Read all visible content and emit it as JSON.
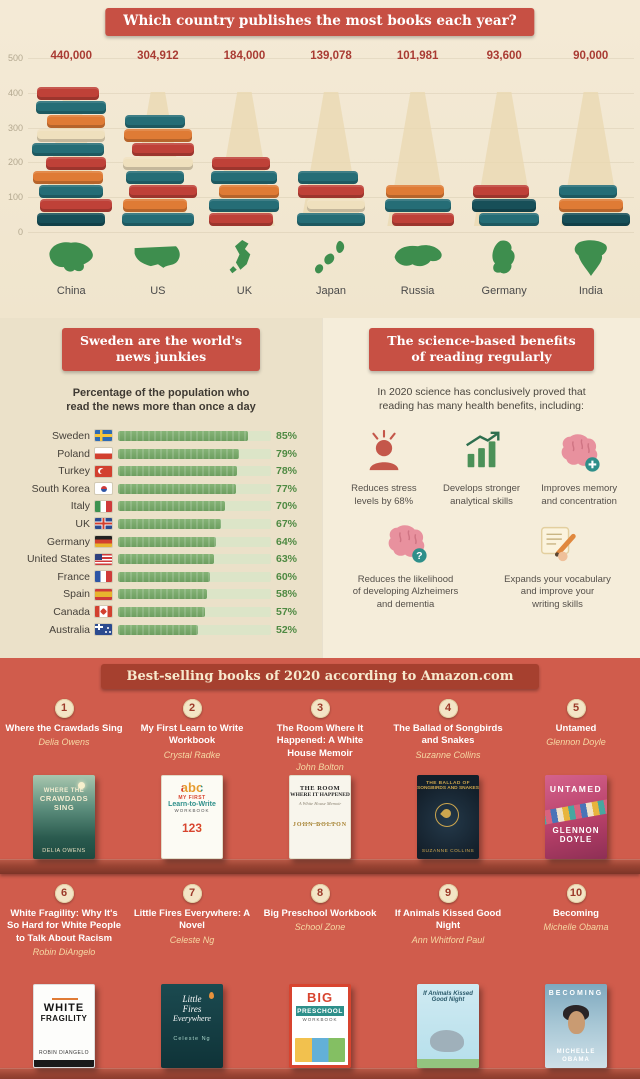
{
  "colors": {
    "accent_red": "#c75044",
    "banner_dark_red": "#a6402f",
    "bottom_background": "#d05c4c",
    "map_green": "#3e8e4e",
    "bar_green": "#6d9e60",
    "cream_background": "#f2e8d2"
  },
  "chart_data": [
    {
      "type": "bar",
      "title": "Which country publishes the most books each year?",
      "categories": [
        "China",
        "US",
        "UK",
        "Japan",
        "Russia",
        "Germany",
        "India"
      ],
      "values": [
        440000,
        304912,
        184000,
        139078,
        101981,
        93600,
        90000
      ],
      "value_labels": [
        "440,000",
        "304,912",
        "184,000",
        "139,078",
        "101,981",
        "93,600",
        "90,000"
      ],
      "y_tick_labels": [
        "500",
        "400",
        "300",
        "200",
        "100",
        "0"
      ],
      "ylim": [
        0,
        500
      ],
      "xlabel": "",
      "ylabel": "",
      "legend_position": "none"
    },
    {
      "type": "bar",
      "orientation": "horizontal",
      "title": "Sweden are the world's news junkies",
      "subtitle": "Percentage of the population who read the news more than once a day",
      "categories": [
        "Sweden",
        "Poland",
        "Turkey",
        "South Korea",
        "Italy",
        "UK",
        "Germany",
        "United States",
        "France",
        "Spain",
        "Canada",
        "Australia"
      ],
      "values": [
        85,
        79,
        78,
        77,
        70,
        67,
        64,
        63,
        60,
        58,
        57,
        52
      ],
      "value_labels": [
        "85%",
        "79%",
        "78%",
        "77%",
        "70%",
        "67%",
        "64%",
        "63%",
        "60%",
        "58%",
        "57%",
        "52%"
      ],
      "xlim": [
        0,
        100
      ],
      "legend_position": "none"
    }
  ],
  "sections": {
    "news": {
      "title_display": "Sweden are the world's\nnews junkies",
      "subtitle_display": "Percentage of the population who\nread the news more than once a day"
    },
    "benefits": {
      "title_display": "The science-based benefits\nof reading regularly",
      "intro": "In 2020 science has conclusively proved that\nreading has many health benefits, including:",
      "items": [
        {
          "icon": "stressed-person-icon",
          "label": "Reduces stress\nlevels by 68%"
        },
        {
          "icon": "bar-chart-growth-icon",
          "label": "Develops stronger\nanalytical skills"
        },
        {
          "icon": "brain-plus-icon",
          "label": "Improves memory\nand concentration"
        },
        {
          "icon": "brain-question-icon",
          "label": "Reduces the likelihood\nof developing Alzheimers\nand dementia"
        },
        {
          "icon": "writing-hand-icon",
          "label": "Expands your vocabulary\nand improve your\nwriting skills"
        }
      ]
    },
    "bestsellers": {
      "title": "Best-selling books of 2020 according to Amazon.com",
      "books": [
        {
          "num": "1",
          "title": "Where the Crawdads Sing",
          "author": "Delia Owens",
          "cover": {
            "t1": "WHERE THE",
            "t2": "CRAWDADS",
            "t3": "SING",
            "t4": "DELIA OWENS"
          }
        },
        {
          "num": "2",
          "title": "My First Learn to Write Workbook",
          "author": "Crystal Radke",
          "cover": {
            "t1": "abc",
            "t2": "MY FIRST",
            "t3": "Learn-to-Write",
            "t4": "WORKBOOK",
            "t5": "123"
          }
        },
        {
          "num": "3",
          "title": "The Room Where It Happened: A White House Memoir",
          "author": "John Bolton",
          "cover": {
            "t1": "THE ROOM",
            "t2": "WHERE IT HAPPENED",
            "t3": "A White House Memoir",
            "t4": "JOHN BOLTON"
          }
        },
        {
          "num": "4",
          "title": "The Ballad of Songbirds and Snakes",
          "author": "Suzanne Collins",
          "cover": {
            "t1": "THE BALLAD OF",
            "t2": "SONGBIRDS AND SNAKES",
            "t3": "SUZANNE COLLINS"
          }
        },
        {
          "num": "5",
          "title": "Untamed",
          "author": "Glennon Doyle",
          "cover": {
            "t1": "UNTAMED",
            "t2": "GLENNON",
            "t3": "DOYLE"
          }
        },
        {
          "num": "6",
          "title": "White Fragility: Why It's So Hard for White People to Talk About Racism",
          "author": "Robin DiAngelo",
          "cover": {
            "t1": "WHITE",
            "t2": "FRAGILITY",
            "t3": "ROBIN DIANGELO"
          }
        },
        {
          "num": "7",
          "title": "Little Fires Everywhere: A Novel",
          "author": "Celeste Ng",
          "cover": {
            "t1": "Little",
            "t2": "Fires",
            "t3": "Everywhere",
            "t4": "Celeste Ng"
          }
        },
        {
          "num": "8",
          "title": "Big Preschool Workbook",
          "author": "School Zone",
          "cover": {
            "t1": "BIG",
            "t2": "PRESCHOOL",
            "t3": "WORKBOOK"
          }
        },
        {
          "num": "9",
          "title": "If Animals Kissed Good Night",
          "author": "Ann Whitford Paul",
          "cover": {
            "t1": "If Animals Kissed",
            "t2": "Good Night"
          }
        },
        {
          "num": "10",
          "title": "Becoming",
          "author": "Michelle Obama",
          "cover": {
            "t1": "BECOMING",
            "t2": "MICHELLE",
            "t3": "OBAMA"
          }
        }
      ]
    }
  },
  "decor": {
    "stacks": [
      [
        {
          "c": "red",
          "w": 62
        },
        {
          "c": "teal",
          "w": 70
        },
        {
          "c": "orange",
          "w": 58
        },
        {
          "c": "cream",
          "w": 68
        },
        {
          "c": "teal",
          "w": 72
        },
        {
          "c": "red",
          "w": 60
        },
        {
          "c": "orange",
          "w": 70
        },
        {
          "c": "teal",
          "w": 64
        },
        {
          "c": "red",
          "w": 72
        },
        {
          "c": "dark",
          "w": 68
        }
      ],
      [
        {
          "c": "teal",
          "w": 60
        },
        {
          "c": "orange",
          "w": 68
        },
        {
          "c": "red",
          "w": 62
        },
        {
          "c": "cream",
          "w": 70
        },
        {
          "c": "teal",
          "w": 58
        },
        {
          "c": "red",
          "w": 68
        },
        {
          "c": "orange",
          "w": 64
        },
        {
          "c": "teal",
          "w": 72
        }
      ],
      [
        {
          "c": "red",
          "w": 58
        },
        {
          "c": "teal",
          "w": 66
        },
        {
          "c": "orange",
          "w": 60
        },
        {
          "c": "teal",
          "w": 70
        },
        {
          "c": "red",
          "w": 64
        }
      ],
      [
        {
          "c": "teal",
          "w": 60
        },
        {
          "c": "red",
          "w": 66
        },
        {
          "c": "cream",
          "w": 58
        },
        {
          "c": "teal",
          "w": 68
        }
      ],
      [
        {
          "c": "orange",
          "w": 58
        },
        {
          "c": "teal",
          "w": 66
        },
        {
          "c": "red",
          "w": 62
        }
      ],
      [
        {
          "c": "red",
          "w": 56
        },
        {
          "c": "dark",
          "w": 64
        },
        {
          "c": "teal",
          "w": 60
        }
      ],
      [
        {
          "c": "teal",
          "w": 58
        },
        {
          "c": "orange",
          "w": 64
        },
        {
          "c": "dark",
          "w": 68
        }
      ]
    ]
  }
}
